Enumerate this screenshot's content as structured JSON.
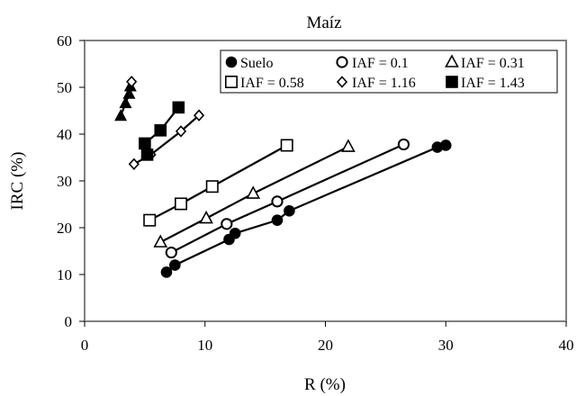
{
  "chart_data": {
    "type": "scatter",
    "title": "Maíz",
    "xlabel": "R (%)",
    "ylabel": "IRC (%)",
    "xlim": [
      0,
      40
    ],
    "ylim": [
      0,
      60
    ],
    "xticks": [
      "0",
      "10",
      "20",
      "30",
      "40"
    ],
    "yticks": [
      "0",
      "10",
      "20",
      "30",
      "40",
      "50",
      "60"
    ],
    "grid": false,
    "legend_position": "top-right",
    "series": [
      {
        "name": "Suelo",
        "marker": "filled-circle",
        "points": [
          [
            6.8,
            10.5
          ],
          [
            7.5,
            12.0
          ],
          [
            12.0,
            17.5
          ],
          [
            12.5,
            18.8
          ],
          [
            16.0,
            21.6
          ],
          [
            17.0,
            23.6
          ],
          [
            29.3,
            37.2
          ],
          [
            30.0,
            37.6
          ]
        ]
      },
      {
        "name": "IAF = 0.1",
        "marker": "open-circle",
        "points": [
          [
            7.2,
            14.7
          ],
          [
            11.8,
            20.8
          ],
          [
            16.0,
            25.6
          ],
          [
            26.5,
            37.8
          ]
        ]
      },
      {
        "name": "IAF = 0.31",
        "marker": "open-triangle",
        "points": [
          [
            6.3,
            16.9
          ],
          [
            10.1,
            22.0
          ],
          [
            14.0,
            27.3
          ],
          [
            21.9,
            37.3
          ]
        ]
      },
      {
        "name": "IAF = 0.58",
        "marker": "open-square",
        "points": [
          [
            5.4,
            21.6
          ],
          [
            8.0,
            25.1
          ],
          [
            10.6,
            28.8
          ],
          [
            16.8,
            37.6
          ]
        ]
      },
      {
        "name": "IAF = 1.16",
        "marker": "open-diamond",
        "points": [
          [
            4.1,
            33.6
          ],
          [
            5.5,
            35.6
          ],
          [
            8.0,
            40.6
          ],
          [
            9.5,
            44.0
          ]
        ]
      },
      {
        "name": "IAF = 1.43",
        "marker": "filled-square",
        "points": [
          [
            5.2,
            35.6
          ],
          [
            5.0,
            38.0
          ],
          [
            6.3,
            40.8
          ],
          [
            7.8,
            45.7
          ]
        ]
      },
      {
        "name": "",
        "marker": "filled-triangle",
        "points": [
          [
            3.0,
            43.9
          ],
          [
            3.4,
            46.6
          ],
          [
            3.7,
            48.6
          ],
          [
            3.8,
            50.2
          ]
        ]
      },
      {
        "name": "",
        "marker": "open-diamond",
        "points": [
          [
            3.9,
            51.2
          ]
        ]
      }
    ]
  }
}
